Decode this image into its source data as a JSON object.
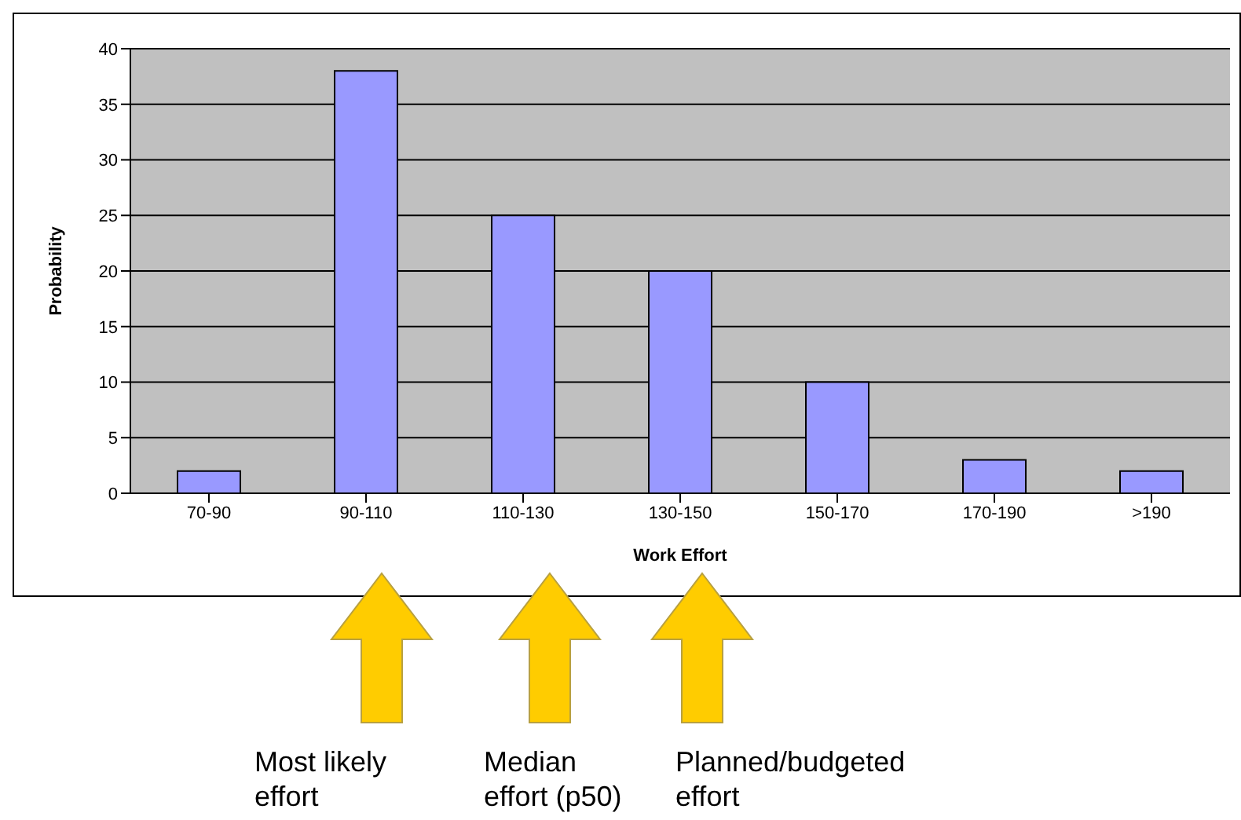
{
  "chart_data": {
    "type": "bar",
    "xlabel": "Work Effort",
    "ylabel": "Probability",
    "categories": [
      "70-90",
      "90-110",
      "110-130",
      "130-150",
      "150-170",
      "170-190",
      ">190"
    ],
    "values": [
      2,
      38,
      25,
      20,
      10,
      3,
      2
    ],
    "color": "#9999ff",
    "ylim": [
      0,
      40
    ],
    "yticks": [
      0,
      5,
      10,
      15,
      20,
      25,
      30,
      35,
      40
    ],
    "grid": "y",
    "legend": false,
    "annotations": [
      "Most likely effort",
      "Median effort (p50)",
      "Planned/budgeted effort"
    ]
  }
}
